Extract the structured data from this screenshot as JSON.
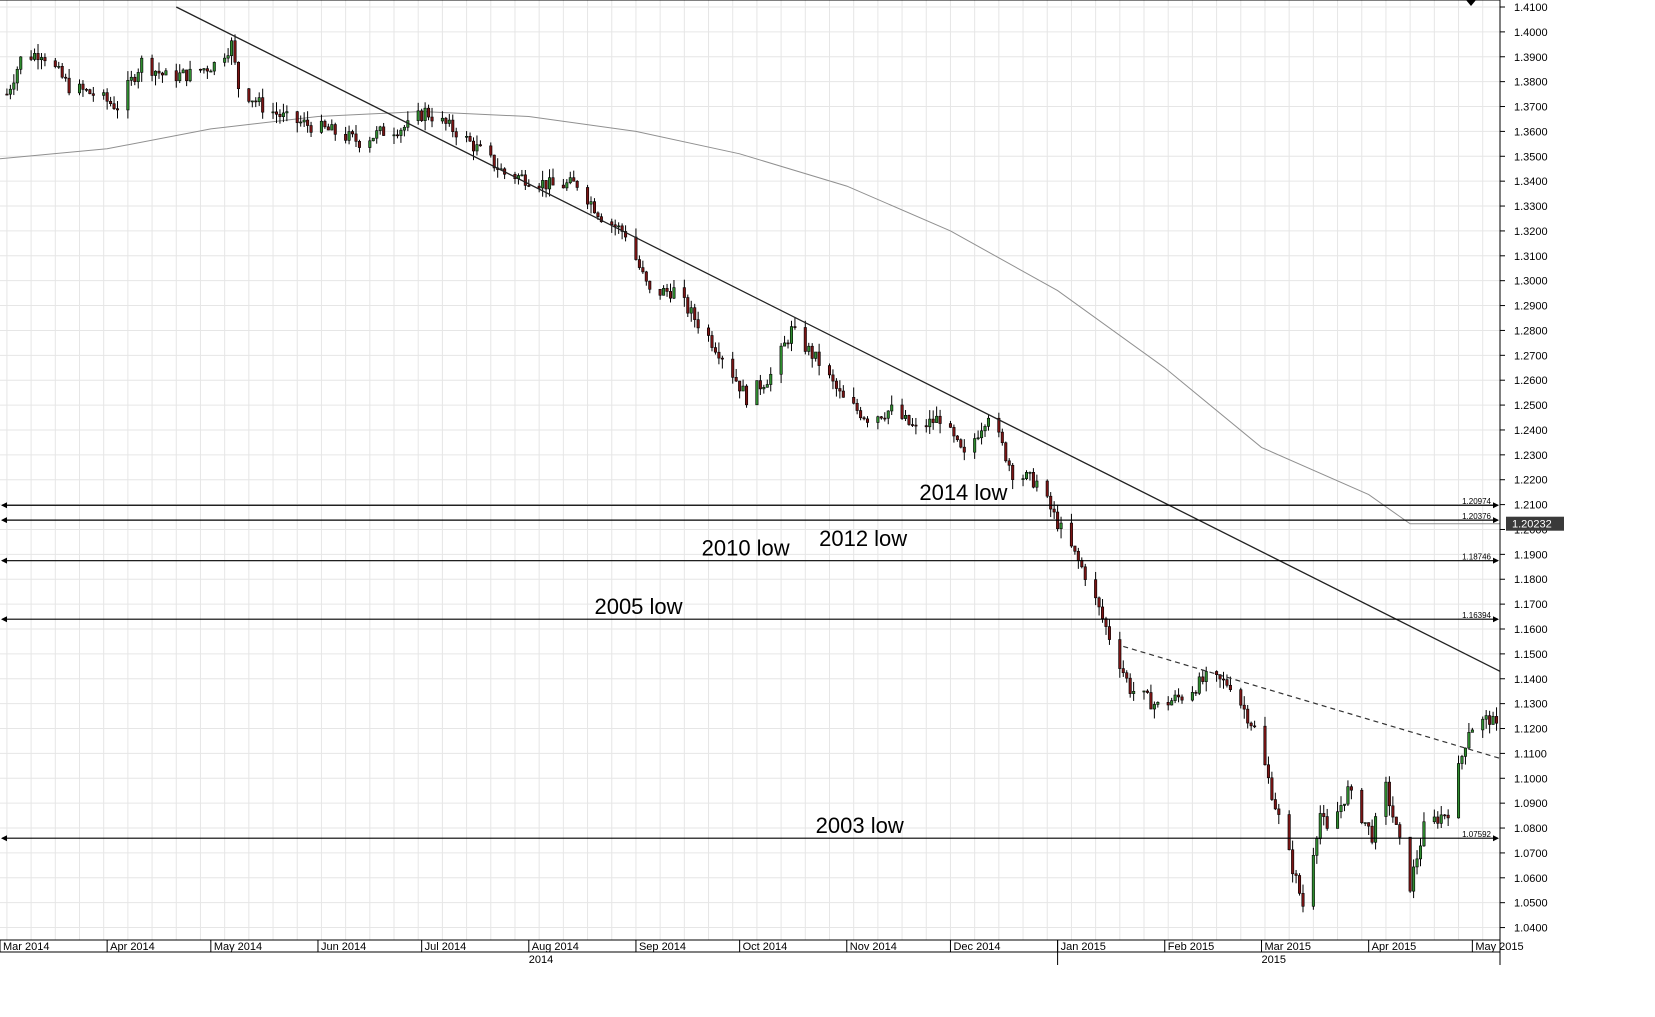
{
  "chart_data": {
    "type": "candlestick",
    "instrument_hint": "EUR/USD",
    "timeframe": "daily",
    "x_range": [
      "2014-03-01",
      "2015-05-09"
    ],
    "y_range": [
      1.035,
      1.41
    ],
    "y_ticks": [
      "1.4100",
      "1.4000",
      "1.3900",
      "1.3800",
      "1.3700",
      "1.3600",
      "1.3500",
      "1.3400",
      "1.3300",
      "1.3200",
      "1.3100",
      "1.3000",
      "1.2900",
      "1.2800",
      "1.2700",
      "1.2600",
      "1.2500",
      "1.2400",
      "1.2300",
      "1.2200",
      "1.2100",
      "1.2000",
      "1.1900",
      "1.1800",
      "1.1700",
      "1.1600",
      "1.1500",
      "1.1400",
      "1.1300",
      "1.1200",
      "1.1100",
      "1.1000",
      "1.0900",
      "1.0800",
      "1.0700",
      "1.0600",
      "1.0500",
      "1.0400"
    ],
    "x_month_labels": [
      {
        "date": "2014-03-01",
        "label": "Mar 2014"
      },
      {
        "date": "2014-04-01",
        "label": "Apr 2014"
      },
      {
        "date": "2014-05-01",
        "label": "May 2014"
      },
      {
        "date": "2014-06-01",
        "label": "Jun 2014"
      },
      {
        "date": "2014-07-01",
        "label": "Jul 2014"
      },
      {
        "date": "2014-08-01",
        "label": "Aug 2014"
      },
      {
        "date": "2014-09-01",
        "label": "Sep 2014"
      },
      {
        "date": "2014-10-01",
        "label": "Oct 2014"
      },
      {
        "date": "2014-11-01",
        "label": "Nov 2014"
      },
      {
        "date": "2014-12-01",
        "label": "Dec 2014"
      },
      {
        "date": "2015-01-01",
        "label": "Jan 2015"
      },
      {
        "date": "2015-02-01",
        "label": "Feb 2015"
      },
      {
        "date": "2015-03-01",
        "label": "Mar 2015"
      },
      {
        "date": "2015-04-01",
        "label": "Apr 2015"
      },
      {
        "date": "2015-05-01",
        "label": "May 2015"
      }
    ],
    "x_year_labels": [
      {
        "date": "2014-08-01",
        "label": "2014"
      },
      {
        "date": "2015-03-01",
        "label": "2015"
      }
    ],
    "year_boundary": "2015-01-01",
    "price_anchors": [
      [
        "2014-03-03",
        1.375
      ],
      [
        "2014-03-07",
        1.389
      ],
      [
        "2014-03-13",
        1.392
      ],
      [
        "2014-03-21",
        1.378
      ],
      [
        "2014-03-28",
        1.375
      ],
      [
        "2014-04-04",
        1.37
      ],
      [
        "2014-04-11",
        1.388
      ],
      [
        "2014-04-18",
        1.382
      ],
      [
        "2014-04-25",
        1.383
      ],
      [
        "2014-05-02",
        1.387
      ],
      [
        "2014-05-07",
        1.395
      ],
      [
        "2014-05-09",
        1.378
      ],
      [
        "2014-05-16",
        1.37
      ],
      [
        "2014-05-23",
        1.365
      ],
      [
        "2014-06-05",
        1.36
      ],
      [
        "2014-06-13",
        1.356
      ],
      [
        "2014-06-20",
        1.36
      ],
      [
        "2014-06-27",
        1.362
      ],
      [
        "2014-07-02",
        1.368
      ],
      [
        "2014-07-11",
        1.36
      ],
      [
        "2014-07-18",
        1.352
      ],
      [
        "2014-07-25",
        1.343
      ],
      [
        "2014-08-01",
        1.341
      ],
      [
        "2014-08-08",
        1.338
      ],
      [
        "2014-08-15",
        1.339
      ],
      [
        "2014-08-22",
        1.326
      ],
      [
        "2014-08-29",
        1.319
      ],
      [
        "2014-09-05",
        1.295
      ],
      [
        "2014-09-12",
        1.296
      ],
      [
        "2014-09-19",
        1.283
      ],
      [
        "2014-09-26",
        1.27
      ],
      [
        "2014-10-03",
        1.253
      ],
      [
        "2014-10-10",
        1.262
      ],
      [
        "2014-10-16",
        1.28
      ],
      [
        "2014-10-24",
        1.267
      ],
      [
        "2014-10-31",
        1.252
      ],
      [
        "2014-11-07",
        1.245
      ],
      [
        "2014-11-14",
        1.248
      ],
      [
        "2014-11-21",
        1.24
      ],
      [
        "2014-11-28",
        1.245
      ],
      [
        "2014-12-05",
        1.229
      ],
      [
        "2014-12-12",
        1.247
      ],
      [
        "2014-12-19",
        1.223
      ],
      [
        "2014-12-26",
        1.219
      ],
      [
        "2015-01-02",
        1.2
      ],
      [
        "2015-01-09",
        1.182
      ],
      [
        "2015-01-16",
        1.157
      ],
      [
        "2015-01-22",
        1.136
      ],
      [
        "2015-01-30",
        1.129
      ],
      [
        "2015-02-06",
        1.133
      ],
      [
        "2015-02-13",
        1.14
      ],
      [
        "2015-02-20",
        1.138
      ],
      [
        "2015-02-27",
        1.12
      ],
      [
        "2015-03-06",
        1.084
      ],
      [
        "2015-03-13",
        1.049
      ],
      [
        "2015-03-18",
        1.086
      ],
      [
        "2015-03-20",
        1.078
      ],
      [
        "2015-03-26",
        1.095
      ],
      [
        "2015-04-02",
        1.077
      ],
      [
        "2015-04-06",
        1.096
      ],
      [
        "2015-04-13",
        1.057
      ],
      [
        "2015-04-17",
        1.08
      ],
      [
        "2015-04-24",
        1.087
      ],
      [
        "2015-04-30",
        1.12
      ],
      [
        "2015-05-06",
        1.124
      ],
      [
        "2015-05-08",
        1.12
      ]
    ],
    "moving_average": [
      [
        "2014-03-01",
        1.349
      ],
      [
        "2014-04-01",
        1.353
      ],
      [
        "2014-05-01",
        1.361
      ],
      [
        "2014-06-01",
        1.366
      ],
      [
        "2014-07-01",
        1.368
      ],
      [
        "2014-08-01",
        1.366
      ],
      [
        "2014-09-01",
        1.36
      ],
      [
        "2014-10-01",
        1.351
      ],
      [
        "2014-11-01",
        1.338
      ],
      [
        "2014-12-01",
        1.32
      ],
      [
        "2015-01-01",
        1.296
      ],
      [
        "2015-02-01",
        1.265
      ],
      [
        "2015-03-01",
        1.233
      ],
      [
        "2015-04-01",
        1.214
      ],
      [
        "2015-04-13",
        1.2023
      ],
      [
        "2015-05-09",
        1.2023
      ]
    ],
    "trendline_solid": {
      "start": [
        "2014-04-21",
        1.41
      ],
      "end": [
        "2015-05-09",
        1.143
      ]
    },
    "trendline_dashed": {
      "start": [
        "2015-01-20",
        1.153
      ],
      "end": [
        "2015-05-09",
        1.108
      ]
    },
    "levels": [
      {
        "value": 1.20974,
        "tag": "1.20974",
        "label": "2014 low",
        "label_date": "2014-11-22"
      },
      {
        "value": 1.20376,
        "tag": "1.20376",
        "label": "",
        "label_date": ""
      },
      {
        "value": 1.18746,
        "tag": "1.18746",
        "label": "2010 low",
        "label_date": "2014-09-20"
      },
      {
        "value": 1.16394,
        "tag": "1.16394",
        "label": "2005 low",
        "label_date": "2014-08-20"
      },
      {
        "value": 1.07592,
        "tag": "1.07592",
        "label": "2003 low",
        "label_date": "2014-10-23"
      }
    ],
    "extra_labels": [
      {
        "text": "2012 low",
        "value": 1.197,
        "date": "2014-10-24"
      }
    ],
    "current_price_tag": "1.20232",
    "current_price_value": 1.20232,
    "colors": {
      "bull": "#2e8b2e",
      "bear": "#7a1414",
      "grid": "#e6e6e6",
      "ma": "#909090",
      "tag_bg": "#3a3a3a"
    }
  }
}
